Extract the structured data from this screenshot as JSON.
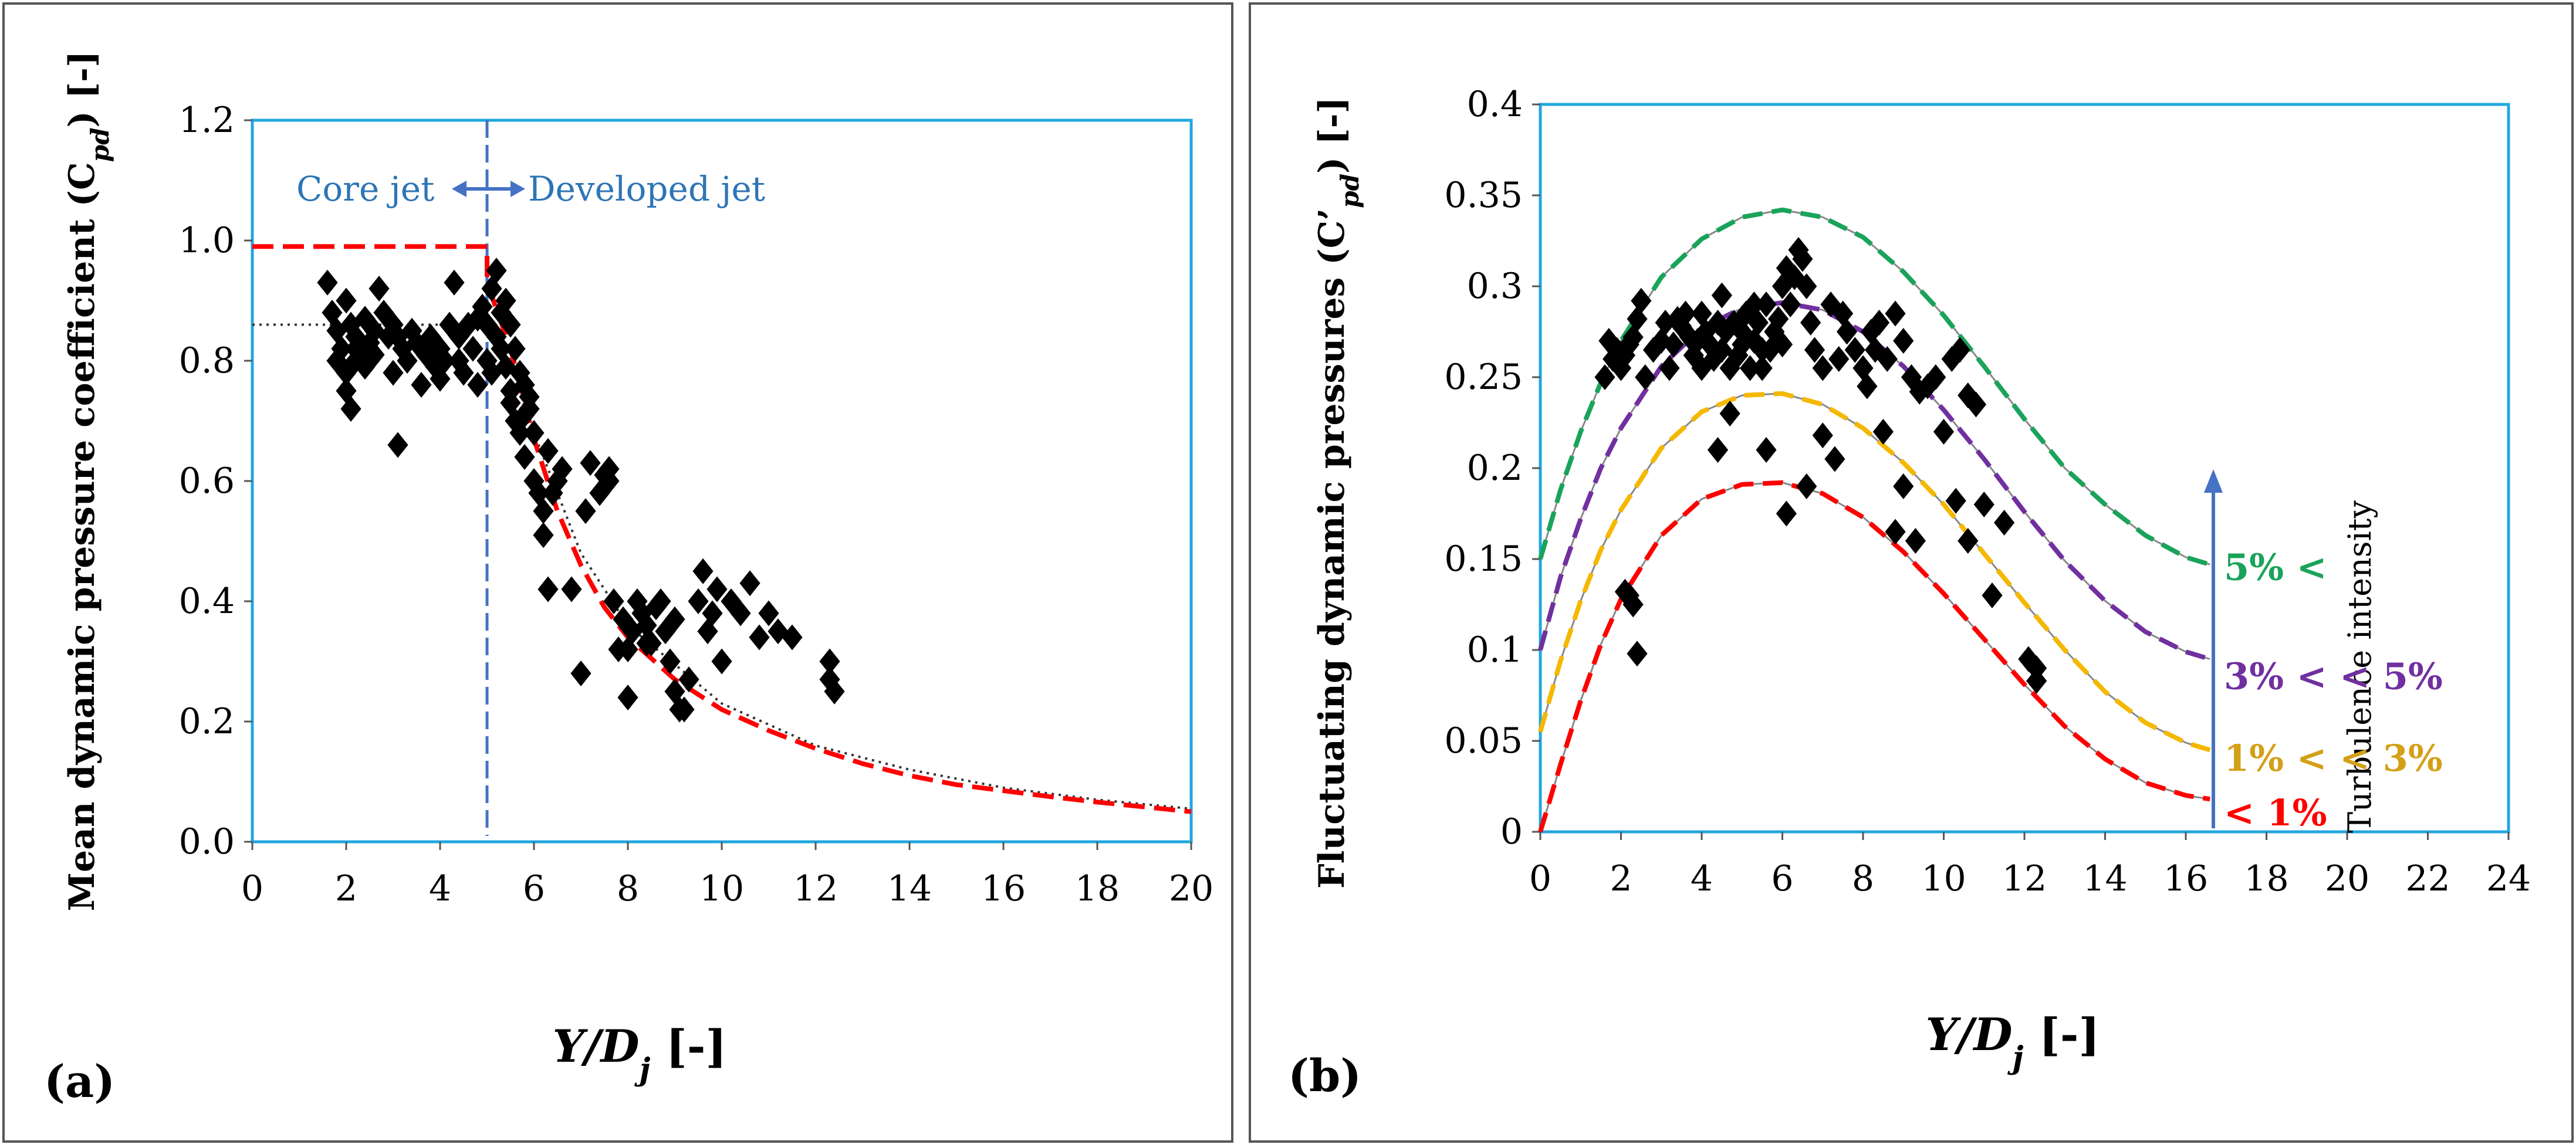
{
  "panels": [
    {
      "id": "a",
      "panel_label": "(a)",
      "ylabel": "Mean dynamic pressure coefficient (C",
      "ylabel_sub": "pd",
      "ylabel_tail": ") [-]",
      "xlabel": "Y/D",
      "xlabel_sub": "j",
      "xlabel_tail": " [-]",
      "core_label": "Core jet",
      "developed_label": "Developed jet"
    },
    {
      "id": "b",
      "panel_label": "(b)",
      "ylabel": "Fluctuating dynamic pressures (C’",
      "ylabel_sub": "pd",
      "ylabel_tail": ") [-]",
      "xlabel": "Y/D",
      "xlabel_sub": "j",
      "xlabel_tail": " [-]",
      "arrow_label": "Turbulence intensity",
      "band_labels": [
        {
          "text": "5% <",
          "color": "#1aa35a",
          "y": 0.145
        },
        {
          "text": "3% < < 5%",
          "color": "#7030a0",
          "y": 0.085
        },
        {
          "text": "1% < < 3%",
          "color": "#d4a017",
          "y": 0.04
        },
        {
          "text": "< 1%",
          "color": "#ff0000",
          "y": 0.01
        }
      ]
    }
  ],
  "colors": {
    "frame": "#22a7e0",
    "points": "#000000",
    "red": "#ff0000",
    "green": "#1aa35a",
    "purple": "#7030a0",
    "yellow": "#f5b800",
    "blue": "#4472c4",
    "core_text": "#2e75b6"
  },
  "chart_data": [
    {
      "type": "scatter",
      "title": "",
      "xlabel": "Y/Dj [-]",
      "ylabel": "Mean dynamic pressure coefficient (Cpd) [-]",
      "xlim": [
        0,
        20
      ],
      "ylim": [
        0,
        1.2
      ],
      "xticks": [
        "0",
        "2",
        "4",
        "6",
        "8",
        "10",
        "12",
        "14",
        "16",
        "18",
        "20"
      ],
      "yticks": [
        "0.0",
        "0.2",
        "0.4",
        "0.6",
        "0.8",
        "1.0",
        "1.2"
      ],
      "grid": false,
      "boundary_x": 5,
      "reference_curve": {
        "style": "red dashed",
        "x": [
          0,
          5,
          5,
          5.5,
          6,
          6.5,
          7,
          7.5,
          8,
          9,
          10,
          11,
          12,
          13,
          14,
          15,
          16,
          17,
          18,
          19,
          20
        ],
        "y": [
          0.99,
          0.99,
          0.93,
          0.82,
          0.67,
          0.55,
          0.46,
          0.39,
          0.34,
          0.27,
          0.22,
          0.185,
          0.155,
          0.13,
          0.11,
          0.095,
          0.085,
          0.075,
          0.066,
          0.058,
          0.05
        ]
      },
      "fit_line": {
        "style": "black dotted",
        "x": [
          0,
          5,
          5.5,
          6,
          7,
          8,
          10,
          12,
          14,
          16,
          18,
          20
        ],
        "y": [
          0.86,
          0.86,
          0.8,
          0.68,
          0.48,
          0.36,
          0.23,
          0.16,
          0.12,
          0.09,
          0.07,
          0.055
        ]
      },
      "series": [
        {
          "x": [
            1.6,
            1.7,
            1.8,
            1.9,
            2.0,
            2.0,
            2.1,
            2.1,
            2.2,
            2.2,
            2.3,
            2.4,
            2.4,
            2.5,
            2.6,
            2.7,
            2.8,
            2.9,
            3.0,
            3.0,
            3.1,
            3.2,
            3.3,
            3.4,
            3.5,
            3.6,
            3.7,
            3.8,
            3.9,
            4.0,
            4.0,
            4.1,
            4.2,
            4.3,
            4.4,
            4.5,
            4.6,
            4.7,
            4.8,
            4.9,
            5.0,
            5.0,
            5.1,
            5.1,
            5.2,
            5.2,
            5.3,
            5.3,
            5.4,
            5.4,
            5.5,
            5.5,
            5.6,
            5.6,
            5.7,
            5.7,
            5.8,
            5.8,
            5.9,
            6.0,
            6.0,
            6.1,
            6.2,
            6.3,
            6.4,
            6.5,
            6.6,
            6.8,
            7.0,
            7.2,
            7.4,
            7.5,
            7.6,
            7.7,
            7.8,
            7.9,
            8.0,
            8.1,
            8.2,
            8.3,
            8.4,
            8.5,
            8.6,
            8.7,
            8.8,
            8.9,
            9.0,
            9.1,
            9.5,
            9.6,
            9.7,
            9.8,
            9.9,
            10.0,
            10.2,
            10.4,
            10.6,
            10.8,
            11.0,
            11.2,
            11.5,
            12.3,
            12.3,
            12.4,
            1.8,
            2.0,
            2.2,
            2.6,
            3.1,
            4.4,
            5.5,
            6.3,
            6.2,
            7.1,
            7.6,
            8.0,
            8.4,
            9.0,
            9.2,
            9.3,
            5.9,
            5.8,
            4.8
          ],
          "y": [
            0.93,
            0.88,
            0.85,
            0.82,
            0.9,
            0.78,
            0.86,
            0.72,
            0.84,
            0.8,
            0.82,
            0.87,
            0.79,
            0.83,
            0.81,
            0.92,
            0.88,
            0.84,
            0.78,
            0.86,
            0.66,
            0.82,
            0.8,
            0.85,
            0.83,
            0.76,
            0.81,
            0.84,
            0.79,
            0.82,
            0.77,
            0.8,
            0.86,
            0.93,
            0.84,
            0.78,
            0.86,
            0.82,
            0.76,
            0.89,
            0.8,
            0.86,
            0.78,
            0.92,
            0.84,
            0.95,
            0.82,
            0.88,
            0.79,
            0.9,
            0.75,
            0.86,
            0.7,
            0.82,
            0.68,
            0.78,
            0.64,
            0.76,
            0.72,
            0.68,
            0.6,
            0.58,
            0.55,
            0.65,
            0.58,
            0.6,
            0.62,
            0.42,
            0.28,
            0.63,
            0.58,
            0.61,
            0.6,
            0.4,
            0.32,
            0.37,
            0.24,
            0.35,
            0.4,
            0.38,
            0.36,
            0.33,
            0.39,
            0.4,
            0.35,
            0.3,
            0.25,
            0.22,
            0.4,
            0.45,
            0.35,
            0.38,
            0.42,
            0.3,
            0.4,
            0.38,
            0.43,
            0.34,
            0.38,
            0.35,
            0.34,
            0.3,
            0.27,
            0.25,
            0.8,
            0.75,
            0.82,
            0.85,
            0.84,
            0.8,
            0.73,
            0.42,
            0.51,
            0.55,
            0.62,
            0.32,
            0.33,
            0.37,
            0.22,
            0.27,
            0.74,
            0.71,
            0.87
          ]
        }
      ]
    },
    {
      "type": "scatter",
      "title": "",
      "xlabel": "Y/Dj [-]",
      "ylabel": "Fluctuating dynamic pressures (C’pd) [-]",
      "xlim": [
        0,
        24
      ],
      "ylim": [
        0,
        0.4
      ],
      "xticks": [
        "0",
        "2",
        "4",
        "6",
        "8",
        "10",
        "12",
        "14",
        "16",
        "18",
        "20",
        "22",
        "24"
      ],
      "yticks": [
        "0",
        "0.05",
        "0.1",
        "0.15",
        "0.2",
        "0.25",
        "0.3",
        "0.35",
        "0.4"
      ],
      "grid": false,
      "curves": [
        {
          "name": "5% <",
          "color": "#1aa35a",
          "x": [
            0,
            0.5,
            1,
            1.5,
            2,
            3,
            4,
            5,
            6,
            7,
            8,
            9,
            10,
            11,
            12,
            13,
            14,
            15,
            16,
            16.6
          ],
          "y": [
            0.15,
            0.188,
            0.22,
            0.247,
            0.27,
            0.305,
            0.326,
            0.338,
            0.342,
            0.338,
            0.327,
            0.308,
            0.284,
            0.256,
            0.227,
            0.2,
            0.18,
            0.163,
            0.151,
            0.147
          ]
        },
        {
          "name": "3% < < 5%",
          "color": "#7030a0",
          "x": [
            0,
            0.5,
            1,
            1.5,
            2,
            3,
            4,
            5,
            6,
            7,
            8,
            9,
            10,
            11,
            12,
            13,
            14,
            15,
            16,
            16.6
          ],
          "y": [
            0.1,
            0.14,
            0.172,
            0.2,
            0.222,
            0.256,
            0.277,
            0.288,
            0.291,
            0.287,
            0.275,
            0.256,
            0.232,
            0.205,
            0.176,
            0.149,
            0.127,
            0.11,
            0.099,
            0.095
          ]
        },
        {
          "name": "1% < < 3%",
          "color": "#f5b800",
          "x": [
            0,
            0.5,
            1,
            1.5,
            2,
            3,
            4,
            5,
            6,
            7,
            8,
            9,
            10,
            11,
            12,
            13,
            14,
            15,
            16,
            16.6
          ],
          "y": [
            0.055,
            0.094,
            0.127,
            0.155,
            0.177,
            0.211,
            0.231,
            0.24,
            0.241,
            0.235,
            0.222,
            0.203,
            0.18,
            0.153,
            0.126,
            0.1,
            0.077,
            0.06,
            0.049,
            0.045
          ]
        },
        {
          "name": "< 1%",
          "color": "#ff0000",
          "x": [
            0,
            0.5,
            1,
            1.5,
            2,
            3,
            4,
            5,
            6,
            7,
            8,
            9,
            10,
            11,
            12,
            13,
            14,
            15,
            16,
            16.6
          ],
          "y": [
            0,
            0.037,
            0.072,
            0.103,
            0.128,
            0.163,
            0.183,
            0.191,
            0.192,
            0.186,
            0.173,
            0.154,
            0.131,
            0.106,
            0.081,
            0.058,
            0.04,
            0.027,
            0.02,
            0.018
          ]
        }
      ],
      "series": [
        {
          "x": [
            1.6,
            1.7,
            1.8,
            1.9,
            2.0,
            2.1,
            2.2,
            2.3,
            2.4,
            2.5,
            2.6,
            2.8,
            3.0,
            3.1,
            3.2,
            3.3,
            3.4,
            3.5,
            3.6,
            3.7,
            3.8,
            3.9,
            4.0,
            4.0,
            4.1,
            4.2,
            4.3,
            4.4,
            4.5,
            4.5,
            4.6,
            4.7,
            4.8,
            4.9,
            5.0,
            5.0,
            5.1,
            5.2,
            5.3,
            5.3,
            5.4,
            5.5,
            5.5,
            5.6,
            5.7,
            5.8,
            5.9,
            6.0,
            6.0,
            6.1,
            6.2,
            6.3,
            6.4,
            6.5,
            6.6,
            6.7,
            6.8,
            7.0,
            7.2,
            7.4,
            7.5,
            7.6,
            7.8,
            8.0,
            8.1,
            8.2,
            8.3,
            8.4,
            8.6,
            8.8,
            9.0,
            9.2,
            9.4,
            9.6,
            9.8,
            10.0,
            10.2,
            10.4,
            10.6,
            10.8,
            11.0,
            11.5,
            12.3,
            12.3,
            2.2,
            2.3,
            2.1,
            2.4,
            4.4,
            4.7,
            5.6,
            6.1,
            6.6,
            7.0,
            7.3,
            8.5,
            8.8,
            9.0,
            9.3,
            10.3,
            10.6,
            11.2,
            12.1
          ],
          "y": [
            0.25,
            0.27,
            0.26,
            0.265,
            0.255,
            0.262,
            0.268,
            0.272,
            0.282,
            0.292,
            0.25,
            0.265,
            0.27,
            0.28,
            0.255,
            0.268,
            0.282,
            0.278,
            0.285,
            0.272,
            0.262,
            0.27,
            0.255,
            0.285,
            0.275,
            0.268,
            0.26,
            0.28,
            0.295,
            0.265,
            0.275,
            0.255,
            0.28,
            0.262,
            0.275,
            0.268,
            0.285,
            0.255,
            0.27,
            0.29,
            0.28,
            0.265,
            0.255,
            0.29,
            0.265,
            0.275,
            0.282,
            0.3,
            0.268,
            0.31,
            0.29,
            0.305,
            0.32,
            0.315,
            0.3,
            0.28,
            0.265,
            0.255,
            0.29,
            0.26,
            0.285,
            0.275,
            0.265,
            0.255,
            0.245,
            0.275,
            0.265,
            0.28,
            0.26,
            0.285,
            0.27,
            0.25,
            0.242,
            0.245,
            0.25,
            0.22,
            0.26,
            0.265,
            0.24,
            0.235,
            0.18,
            0.17,
            0.09,
            0.083,
            0.13,
            0.125,
            0.132,
            0.098,
            0.21,
            0.23,
            0.21,
            0.175,
            0.19,
            0.218,
            0.205,
            0.22,
            0.165,
            0.19,
            0.16,
            0.182,
            0.16,
            0.13,
            0.095
          ]
        }
      ]
    }
  ]
}
